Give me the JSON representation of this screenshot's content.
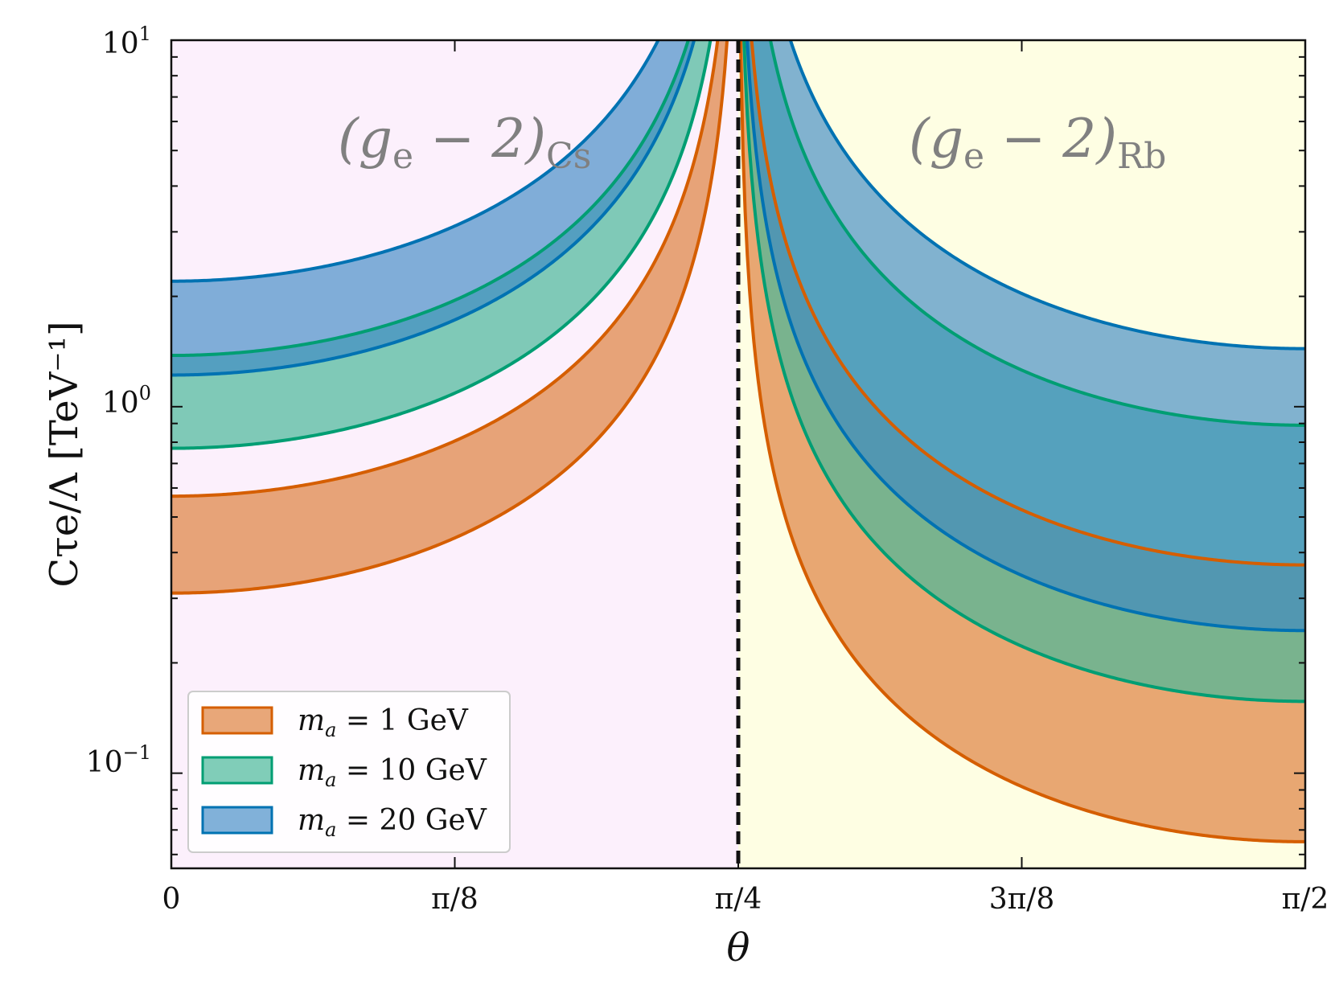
{
  "chart_data": {
    "type": "area",
    "xlabel": "θ",
    "ylabel": "Cτe/Λ [TeV⁻¹]",
    "yscale": "log",
    "xlim": [
      0,
      1.5708
    ],
    "ylim": [
      0.055,
      10
    ],
    "xticks": [
      {
        "value": 0,
        "label": "0"
      },
      {
        "value": 0.3927,
        "label": "π/8"
      },
      {
        "value": 0.7854,
        "label": "π/4"
      },
      {
        "value": 1.1781,
        "label": "3π/8"
      },
      {
        "value": 1.5708,
        "label": "π/2"
      }
    ],
    "yticks": [
      {
        "value": 0.1,
        "base": "10",
        "exp": "−1"
      },
      {
        "value": 1,
        "base": "10",
        "exp": "0"
      },
      {
        "value": 10,
        "base": "10",
        "exp": "1"
      }
    ],
    "divider_x": 0.7854,
    "regions": [
      {
        "name": "(ge − 2)Cs",
        "main": "(g",
        "sub1": "e",
        "mid": " − 2)",
        "sub2": "Cs",
        "color": "#fcf0fc",
        "x_range": [
          0,
          0.7854
        ]
      },
      {
        "name": "(ge − 2)Rb",
        "main": "(g",
        "sub1": "e",
        "mid": " − 2)",
        "sub2": "Rb",
        "color": "#fefee3",
        "x_range": [
          0.7854,
          1.5708
        ]
      }
    ],
    "series": [
      {
        "name": "ma = 1 GeV",
        "legend": {
          "prefix": "m",
          "sub": "a",
          "rest": " = 1 GeV"
        },
        "color": "#d55e00",
        "fill": "#e08a4c",
        "fill_opacity": 0.75,
        "lower_left": 0.31,
        "upper_left": 0.57,
        "lower_right": 0.065,
        "upper_right": 0.37
      },
      {
        "name": "ma = 10 GeV",
        "legend": {
          "prefix": "m",
          "sub": "a",
          "rest": " = 10 GeV"
        },
        "color": "#009e73",
        "fill": "#4ab89a",
        "fill_opacity": 0.7,
        "lower_left": 0.77,
        "upper_left": 1.38,
        "lower_right": 0.157,
        "upper_right": 0.89
      },
      {
        "name": "ma = 20 GeV",
        "legend": {
          "prefix": "m",
          "sub": "a",
          "rest": " = 20 GeV"
        },
        "color": "#0072b2",
        "fill": "#3d89c4",
        "fill_opacity": 0.65,
        "lower_left": 1.22,
        "upper_left": 2.2,
        "lower_right": 0.245,
        "upper_right": 1.44
      }
    ]
  }
}
